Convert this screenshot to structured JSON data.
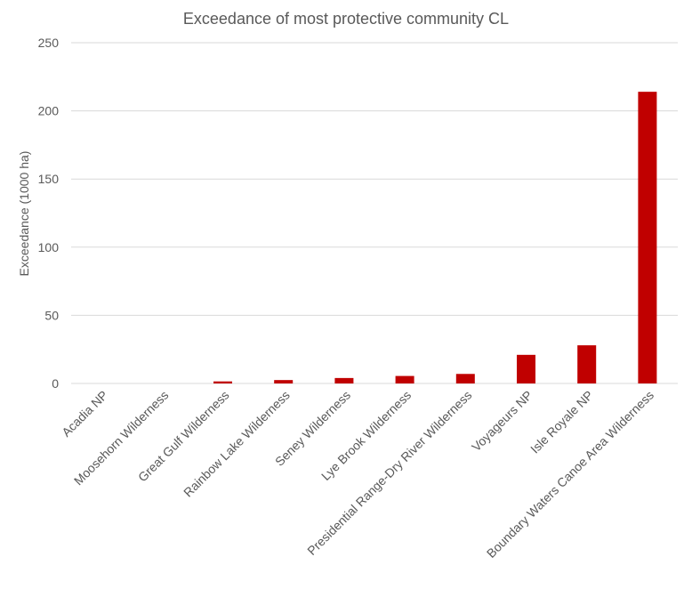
{
  "chart_data": {
    "type": "bar",
    "title": "Exceedance of most protective community CL",
    "xlabel": "",
    "ylabel": "Exceedance  (1000 ha)",
    "ylim": [
      0,
      250
    ],
    "yticks": [
      0,
      50,
      100,
      150,
      200,
      250
    ],
    "grid": true,
    "legend": "none",
    "bar_color": "#C00000",
    "categories": [
      "Acadia NP",
      "Moosehorn Wilderness",
      "Great Gulf Wilderness",
      "Rainbow Lake Wilderness",
      "Seney Wilderness",
      "Lye Brook Wilderness",
      "Presidential Range-Dry River Wilderness",
      "Voyageurs NP",
      "Isle Royale NP",
      "Boundary Waters Canoe Area Wilderness"
    ],
    "values": [
      0,
      0,
      1.5,
      2.5,
      4,
      5.5,
      7,
      21,
      28,
      214
    ]
  }
}
